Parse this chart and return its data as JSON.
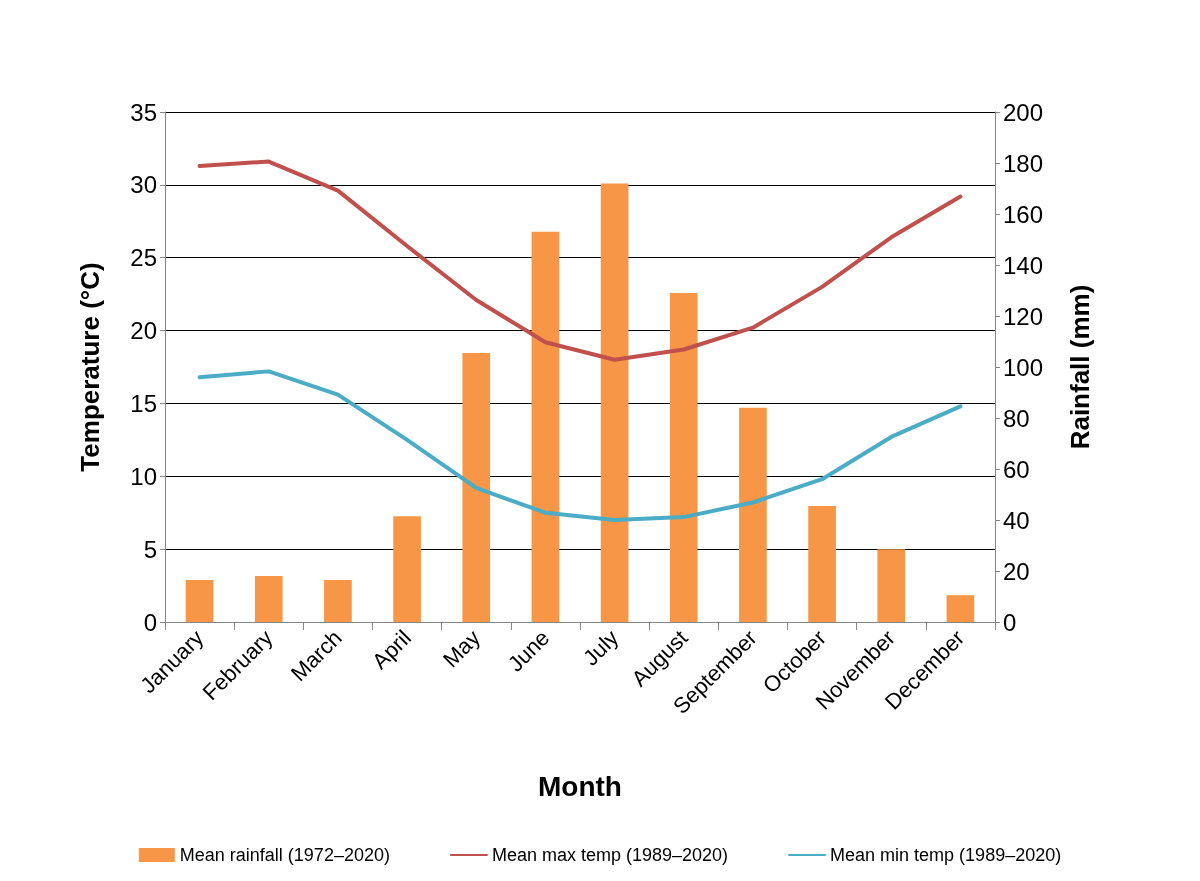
{
  "chart_data": {
    "type": "line",
    "xlabel": "Month",
    "ylabel": "Temperature (°C)",
    "y2label": "Rainfall (mm)",
    "categories": [
      "January",
      "February",
      "March",
      "April",
      "May",
      "June",
      "July",
      "August",
      "September",
      "October",
      "November",
      "December"
    ],
    "series": [
      {
        "name": "Mean rainfall (1972–2020)",
        "type": "bar",
        "axis": "y2",
        "color": "#f79646",
        "values": [
          16.5,
          18,
          16.5,
          41.5,
          105.5,
          153,
          172,
          129,
          84,
          45.5,
          28.5,
          10.5
        ]
      },
      {
        "name": "Mean max temp (1989–2020)",
        "color": "#c0504d",
        "values": [
          31.3,
          31.6,
          29.6,
          25.8,
          22.1,
          19.2,
          18.0,
          18.7,
          20.2,
          23.0,
          26.4,
          29.2
        ]
      },
      {
        "name": "Mean min temp (1989–2020)",
        "color": "#4bacc6",
        "values": [
          16.8,
          17.2,
          15.6,
          12.5,
          9.2,
          7.5,
          7.0,
          7.2,
          8.2,
          9.8,
          12.7,
          14.8
        ]
      }
    ],
    "ylim": [
      0,
      35
    ],
    "yticks": [
      0,
      5,
      10,
      15,
      20,
      25,
      30,
      35
    ],
    "y2lim": [
      0,
      200
    ],
    "y2ticks": [
      0,
      20,
      40,
      60,
      80,
      100,
      120,
      140,
      160,
      180,
      200
    ],
    "grid": "y",
    "legend": "bottom",
    "marker": "none",
    "line_style": "solid"
  }
}
